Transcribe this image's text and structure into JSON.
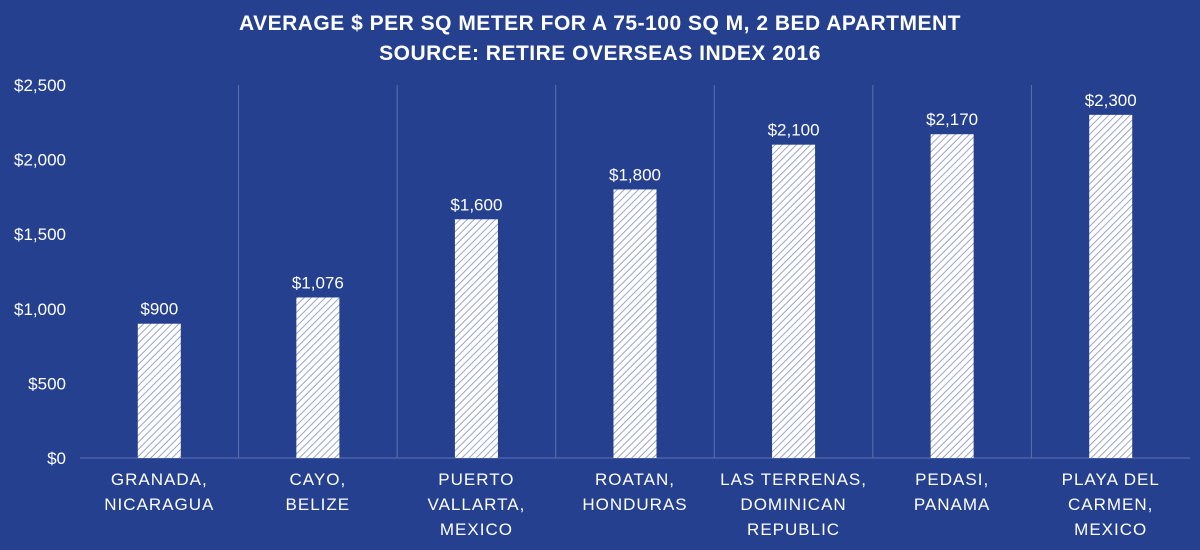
{
  "chart_data": {
    "type": "bar",
    "title": [
      "AVERAGE $ PER SQ METER FOR A 75-100 SQ M, 2 BED APARTMENT",
      "SOURCE: RETIRE OVERSEAS INDEX 2016"
    ],
    "categories": [
      [
        "GRANADA,",
        "NICARAGUA"
      ],
      [
        "CAYO,",
        "BELIZE"
      ],
      [
        "PUERTO",
        "VALLARTA,",
        "MEXICO"
      ],
      [
        "ROATAN,",
        "HONDURAS"
      ],
      [
        "LAS TERRENAS,",
        "DOMINICAN",
        "REPUBLIC"
      ],
      [
        "PEDASI,",
        "PANAMA"
      ],
      [
        "PLAYA DEL",
        "CARMEN,",
        "MEXICO"
      ]
    ],
    "values": [
      900,
      1076,
      1600,
      1800,
      2100,
      2170,
      2300
    ],
    "data_labels": [
      "$900",
      "$1,076",
      "$1,600",
      "$1,800",
      "$2,100",
      "$2,170",
      "$2,300"
    ],
    "y_ticks": [
      0,
      500,
      1000,
      1500,
      2000,
      2500
    ],
    "y_tick_labels": [
      "$0",
      "$500",
      "$1,000",
      "$1,500",
      "$2,000",
      "$2,500"
    ],
    "ylim": [
      0,
      2500
    ],
    "grid": "vertical-separators",
    "legend": "none",
    "colors": {
      "background": "#25408f",
      "bar": "#ffffff",
      "bar_hatch": "#9aa4c8",
      "grid": "#5a72b4",
      "text": "#ffffff"
    }
  }
}
